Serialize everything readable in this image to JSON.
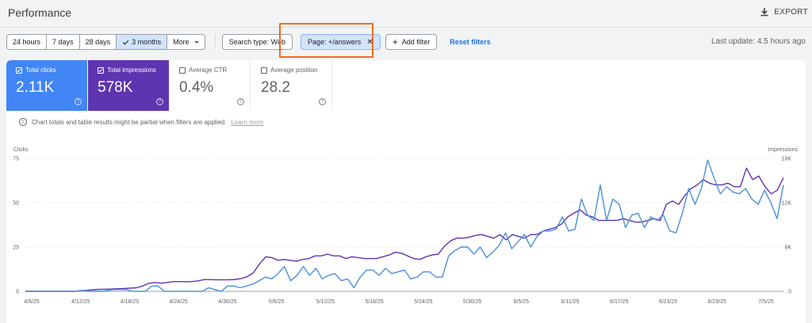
{
  "header": {
    "title": "Performance",
    "export_label": "EXPORT"
  },
  "filters": {
    "date_ranges": [
      "24 hours",
      "7 days",
      "28 days",
      "3 months",
      "More"
    ],
    "active_range": "3 months",
    "search_type": "Search type: Web",
    "page_filter": "Page: +/answers",
    "add_filter": "Add filter",
    "reset": "Reset filters",
    "last_update": "Last update: 4.5 hours ago"
  },
  "metrics": [
    {
      "label": "Total clicks",
      "value": "2.11K",
      "checked": true
    },
    {
      "label": "Total impressions",
      "value": "578K",
      "checked": true
    },
    {
      "label": "Average CTR",
      "value": "0.4%",
      "checked": false
    },
    {
      "label": "Average position",
      "value": "28.2",
      "checked": false
    }
  ],
  "notice": {
    "text": "Chart totals and table results might be partial when filters are applied.",
    "link": "Learn more"
  },
  "colors": {
    "clicks": "#4a90d9",
    "impressions": "#5e35b1",
    "highlight": "#f26b21",
    "accent": "#1a73e8"
  },
  "chart_data": {
    "type": "line",
    "left_axis_label": "Clicks",
    "right_axis_label": "Impressions",
    "left_ylim": [
      0,
      75
    ],
    "left_ticks": [
      "0",
      "25",
      "50",
      "75"
    ],
    "right_ylim": [
      0,
      18000
    ],
    "right_ticks": [
      "0",
      "6K",
      "12K",
      "18K"
    ],
    "x_tick_labels": [
      "4/6/25",
      "4/12/25",
      "4/18/25",
      "4/24/25",
      "4/30/25",
      "5/6/25",
      "5/12/25",
      "5/18/25",
      "5/24/25",
      "5/30/25",
      "6/5/25",
      "6/11/25",
      "6/17/25",
      "6/23/25",
      "6/29/25",
      "7/5/25"
    ],
    "series": [
      {
        "name": "Clicks",
        "axis": "left",
        "values": [
          0,
          0,
          0,
          0,
          0,
          0,
          0,
          0,
          0,
          0.5,
          0,
          0,
          0,
          0.5,
          1,
          1,
          1,
          0,
          0,
          0,
          3,
          3,
          0,
          0,
          0,
          0,
          0,
          0,
          0,
          2,
          1,
          0,
          3,
          3,
          2,
          3,
          4,
          6,
          8,
          7,
          10,
          14,
          6,
          9,
          14,
          9,
          13,
          7,
          9,
          10,
          6,
          7,
          2,
          8,
          12,
          12,
          9,
          13,
          10,
          11,
          12,
          7,
          8,
          11,
          11,
          8,
          8,
          20,
          23,
          25,
          25,
          21,
          25,
          19,
          22,
          26,
          33,
          24,
          28,
          32,
          25,
          31,
          34,
          34,
          35,
          42,
          34,
          35,
          52,
          43,
          40,
          60,
          40,
          52,
          49,
          36,
          43,
          44,
          36,
          42,
          40,
          43,
          34,
          33,
          44,
          58,
          49,
          58,
          74,
          64,
          55,
          59,
          56,
          55,
          58,
          52,
          49,
          57,
          50,
          41,
          60
        ]
      },
      {
        "name": "Impressions",
        "axis": "right",
        "values": [
          0,
          0,
          0,
          0,
          0,
          0,
          0,
          0,
          0,
          120,
          144,
          216,
          264,
          288,
          312,
          360,
          384,
          432,
          480,
          720,
          1080,
          1200,
          1104,
          1200,
          1320,
          1320,
          1296,
          1320,
          1416,
          1584,
          1584,
          1560,
          1560,
          1560,
          1608,
          1728,
          1992,
          2520,
          3720,
          4680,
          4560,
          4200,
          4320,
          4200,
          4080,
          4320,
          4440,
          4800,
          4800,
          5040,
          4800,
          4800,
          4440,
          4680,
          4560,
          4440,
          4440,
          4440,
          4680,
          4920,
          5280,
          5160,
          4800,
          4440,
          4320,
          4680,
          4920,
          5040,
          6120,
          6840,
          7200,
          7200,
          7320,
          7560,
          7680,
          7440,
          7200,
          7680,
          6960,
          7680,
          7440,
          7200,
          7680,
          7680,
          8160,
          8400,
          8640,
          9120,
          10080,
          10560,
          11040,
          10320,
          10080,
          9600,
          9600,
          9600,
          9600,
          9840,
          9600,
          9360,
          9360,
          9600,
          9840,
          9600,
          11760,
          12240,
          11760,
          12960,
          13920,
          14400,
          15120,
          14640,
          14400,
          14400,
          14640,
          14160,
          14160,
          16680,
          15120,
          15600,
          14160,
          13200,
          13680,
          15360
        ]
      }
    ],
    "legend": "none",
    "grid": true
  }
}
